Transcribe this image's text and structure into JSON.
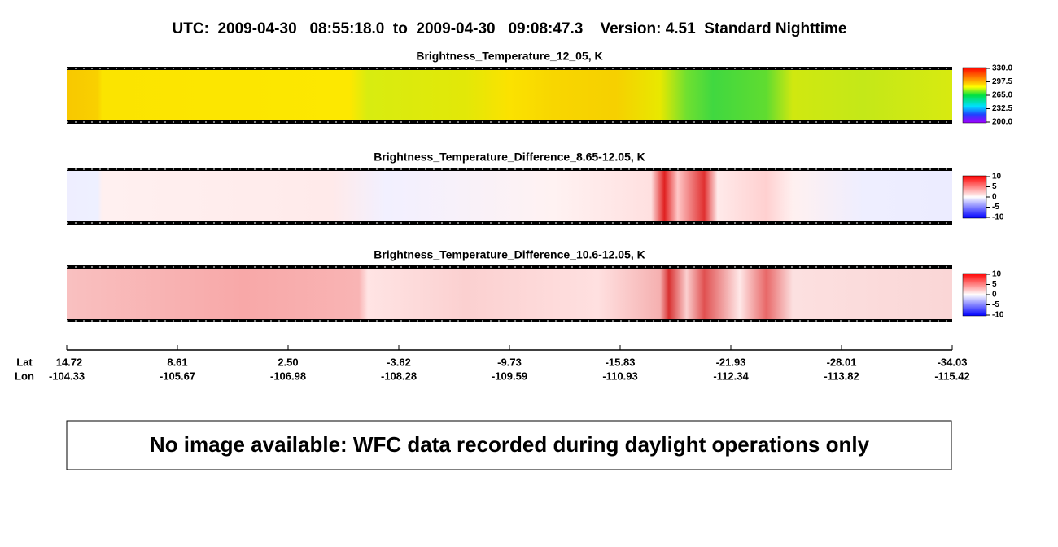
{
  "title": "UTC:  2009-04-30   08:55:18.0  to  2009-04-30   09:08:47.3    Version: 4.51  Standard Nighttime",
  "panels": [
    {
      "title": "Brightness_Temperature_12_05, K",
      "colorbar_ticks": [
        "330.0",
        "297.5",
        "265.0",
        "232.5",
        "200.0"
      ]
    },
    {
      "title": "Brightness_Temperature_Difference_8.65-12.05, K",
      "colorbar_ticks": [
        "10",
        "5",
        "0",
        "-5",
        "-10"
      ]
    },
    {
      "title": "Brightness_Temperature_Difference_10.6-12.05, K",
      "colorbar_ticks": [
        "10",
        "5",
        "0",
        "-5",
        "-10"
      ]
    }
  ],
  "axis": {
    "lat_label": "Lat",
    "lon_label": "Lon",
    "lat": [
      "14.72",
      "8.61",
      "2.50",
      "-3.62",
      "-9.73",
      "-15.83",
      "-21.93",
      "-28.01",
      "-34.03"
    ],
    "lon": [
      "-104.33",
      "-105.67",
      "-106.98",
      "-108.28",
      "-109.59",
      "-110.93",
      "-112.34",
      "-113.82",
      "-115.42"
    ]
  },
  "message": "No image available: WFC data recorded during daylight operations only"
}
